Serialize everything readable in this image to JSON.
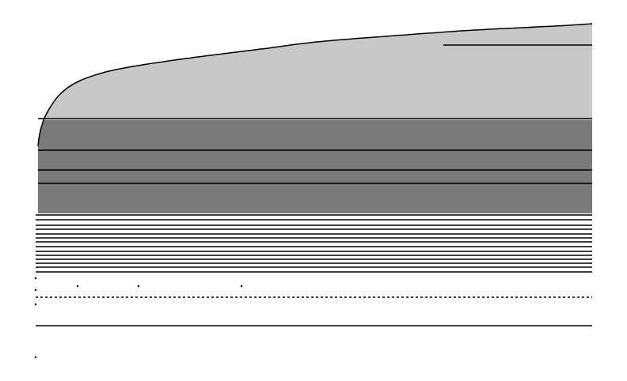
{
  "chart_data": {
    "type": "scatter",
    "tick_labels": false,
    "grid": false,
    "xlim": [
      0,
      792
    ],
    "ylim": [
      0,
      482
    ],
    "color": "#000000",
    "marker": "point",
    "regions": [
      {
        "color": "#c8c8c8",
        "x": [
          55,
          62,
          75,
          95,
          130,
          180,
          250,
          330,
          400,
          500,
          600,
          700,
          748,
          748,
          55
        ],
        "y": [
          330,
          344,
          362,
          377,
          390,
          400,
          410,
          420,
          429,
          437,
          444,
          449,
          452,
          330,
          330
        ]
      },
      {
        "color": "#7a7a7a",
        "x": [
          48,
          48,
          50,
          55,
          748,
          748,
          48
        ],
        "y": [
          212,
          297,
          312,
          330,
          330,
          212,
          212
        ]
      }
    ],
    "envelope": {
      "x": [
        48,
        50,
        55,
        62,
        75,
        95,
        130,
        180,
        250,
        330,
        400,
        500,
        600,
        700,
        748
      ],
      "y": [
        297,
        312,
        330,
        344,
        362,
        377,
        390,
        400,
        410,
        420,
        429,
        437,
        444,
        449,
        452
      ]
    },
    "lines": [
      {
        "x": [
          560,
          748
        ],
        "y": [
          425,
          425
        ],
        "line_style": "solid"
      },
      {
        "x": [
          48,
          748
        ],
        "y": [
          332,
          332
        ],
        "line_style": "solid"
      },
      {
        "x": [
          48,
          748
        ],
        "y": [
          292,
          292
        ],
        "line_style": "solid"
      },
      {
        "x": [
          48,
          748
        ],
        "y": [
          267,
          267
        ],
        "line_style": "solid"
      },
      {
        "x": [
          48,
          748
        ],
        "y": [
          250,
          250
        ],
        "line_style": "solid"
      },
      {
        "x": [
          45,
          748
        ],
        "y": [
          210,
          210
        ],
        "line_style": "solid"
      },
      {
        "x": [
          45,
          748
        ],
        "y": [
          204,
          204
        ],
        "line_style": "solid"
      },
      {
        "x": [
          45,
          748
        ],
        "y": [
          197,
          197
        ],
        "line_style": "solid"
      },
      {
        "x": [
          45,
          748
        ],
        "y": [
          192,
          192
        ],
        "line_style": "solid"
      },
      {
        "x": [
          45,
          748
        ],
        "y": [
          186,
          186
        ],
        "line_style": "solid"
      },
      {
        "x": [
          45,
          748
        ],
        "y": [
          181,
          181
        ],
        "line_style": "solid"
      },
      {
        "x": [
          45,
          748
        ],
        "y": [
          176,
          176
        ],
        "line_style": "solid"
      },
      {
        "x": [
          45,
          748
        ],
        "y": [
          170,
          170
        ],
        "line_style": "solid"
      },
      {
        "x": [
          45,
          748
        ],
        "y": [
          164,
          164
        ],
        "line_style": "solid"
      },
      {
        "x": [
          45,
          748
        ],
        "y": [
          159,
          159
        ],
        "line_style": "solid"
      },
      {
        "x": [
          45,
          748
        ],
        "y": [
          154,
          154
        ],
        "line_style": "solid"
      },
      {
        "x": [
          45,
          748
        ],
        "y": [
          149,
          149
        ],
        "line_style": "solid"
      },
      {
        "x": [
          45,
          748
        ],
        "y": [
          144,
          144
        ],
        "line_style": "solid"
      },
      {
        "x": [
          45,
          748
        ],
        "y": [
          138,
          138
        ],
        "line_style": "solid"
      },
      {
        "x": [
          45,
          748
        ],
        "y": [
          106,
          106
        ],
        "line_style": "dot"
      },
      {
        "x": [
          45,
          748
        ],
        "y": [
          70,
          70
        ],
        "line_style": "solid"
      }
    ],
    "points": {
      "x": [
        45,
        98,
        175,
        305,
        45,
        45,
        45
      ],
      "y": [
        130,
        120,
        120,
        120,
        115,
        97,
        30
      ]
    }
  }
}
